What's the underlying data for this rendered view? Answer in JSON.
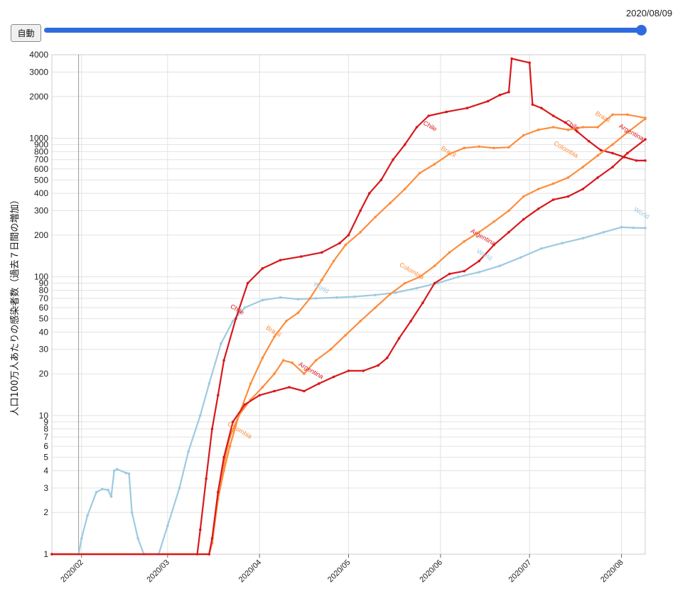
{
  "controls": {
    "auto_button": "自動",
    "current_date": "2020/08/09",
    "slider_progress": 1.0
  },
  "chart_data": {
    "type": "line",
    "title": "",
    "xlabel": "",
    "ylabel": "人口100万人あたりの感染者数（過去７日間の増加）",
    "y_scale": "log",
    "ylim": [
      1,
      4000
    ],
    "y_ticks": [
      1,
      2,
      3,
      4,
      5,
      6,
      7,
      8,
      9,
      10,
      20,
      30,
      40,
      50,
      60,
      70,
      80,
      90,
      100,
      200,
      300,
      400,
      500,
      600,
      700,
      800,
      900,
      1000,
      2000,
      3000,
      4000
    ],
    "x_range": [
      "2020-01-22",
      "2020-08-09"
    ],
    "x_ticks": [
      "2020/02",
      "2020/03",
      "2020/04",
      "2020/05",
      "2020/06",
      "2020/07",
      "2020/08"
    ],
    "x_tick_dates": [
      "2020-02-01",
      "2020-03-01",
      "2020-04-01",
      "2020-05-01",
      "2020-06-01",
      "2020-07-01",
      "2020-08-01"
    ],
    "grid": true,
    "series": [
      {
        "name": "World",
        "color": "#9ecae1",
        "points": [
          [
            "2020-01-22",
            1
          ],
          [
            "2020-01-31",
            1
          ],
          [
            "2020-02-01",
            1.3
          ],
          [
            "2020-02-03",
            1.9
          ],
          [
            "2020-02-06",
            2.8
          ],
          [
            "2020-02-08",
            2.95
          ],
          [
            "2020-02-10",
            2.9
          ],
          [
            "2020-02-11",
            2.6
          ],
          [
            "2020-02-12",
            4.0
          ],
          [
            "2020-02-13",
            4.1
          ],
          [
            "2020-02-16",
            3.85
          ],
          [
            "2020-02-17",
            3.8
          ],
          [
            "2020-02-18",
            2.0
          ],
          [
            "2020-02-20",
            1.3
          ],
          [
            "2020-02-22",
            1.0
          ],
          [
            "2020-02-27",
            1.0
          ],
          [
            "2020-03-01",
            1.6
          ],
          [
            "2020-03-05",
            3.0
          ],
          [
            "2020-03-08",
            5.5
          ],
          [
            "2020-03-12",
            10
          ],
          [
            "2020-03-15",
            17
          ],
          [
            "2020-03-19",
            33
          ],
          [
            "2020-03-23",
            48
          ],
          [
            "2020-03-27",
            60
          ],
          [
            "2020-04-02",
            68
          ],
          [
            "2020-04-08",
            71
          ],
          [
            "2020-04-14",
            69
          ],
          [
            "2020-04-20",
            70
          ],
          [
            "2020-04-27",
            71
          ],
          [
            "2020-05-03",
            72
          ],
          [
            "2020-05-10",
            74
          ],
          [
            "2020-05-17",
            77
          ],
          [
            "2020-05-24",
            83
          ],
          [
            "2020-05-31",
            90
          ],
          [
            "2020-06-07",
            100
          ],
          [
            "2020-06-14",
            108
          ],
          [
            "2020-06-21",
            120
          ],
          [
            "2020-06-28",
            138
          ],
          [
            "2020-07-05",
            160
          ],
          [
            "2020-07-12",
            175
          ],
          [
            "2020-07-19",
            190
          ],
          [
            "2020-07-26",
            210
          ],
          [
            "2020-08-01",
            228
          ],
          [
            "2020-08-05",
            226
          ],
          [
            "2020-08-09",
            225
          ]
        ]
      },
      {
        "name": "Chile",
        "color": "#d7191c",
        "points": [
          [
            "2020-01-22",
            1
          ],
          [
            "2020-03-11",
            1
          ],
          [
            "2020-03-12",
            1.5
          ],
          [
            "2020-03-14",
            3.5
          ],
          [
            "2020-03-16",
            8
          ],
          [
            "2020-03-18",
            14
          ],
          [
            "2020-03-20",
            25
          ],
          [
            "2020-03-24",
            50
          ],
          [
            "2020-03-28",
            90
          ],
          [
            "2020-04-02",
            115
          ],
          [
            "2020-04-08",
            132
          ],
          [
            "2020-04-15",
            140
          ],
          [
            "2020-04-22",
            150
          ],
          [
            "2020-04-28",
            175
          ],
          [
            "2020-05-01",
            200
          ],
          [
            "2020-05-05",
            300
          ],
          [
            "2020-05-08",
            400
          ],
          [
            "2020-05-12",
            500
          ],
          [
            "2020-05-16",
            700
          ],
          [
            "2020-05-20",
            900
          ],
          [
            "2020-05-24",
            1200
          ],
          [
            "2020-05-28",
            1450
          ],
          [
            "2020-06-03",
            1550
          ],
          [
            "2020-06-10",
            1650
          ],
          [
            "2020-06-17",
            1850
          ],
          [
            "2020-06-21",
            2050
          ],
          [
            "2020-06-24",
            2150
          ],
          [
            "2020-06-25",
            3750
          ],
          [
            "2020-07-01",
            3500
          ],
          [
            "2020-07-02",
            1750
          ],
          [
            "2020-07-05",
            1650
          ],
          [
            "2020-07-09",
            1450
          ],
          [
            "2020-07-13",
            1300
          ],
          [
            "2020-07-17",
            1120
          ],
          [
            "2020-07-21",
            950
          ],
          [
            "2020-07-25",
            820
          ],
          [
            "2020-07-29",
            780
          ],
          [
            "2020-08-02",
            730
          ],
          [
            "2020-08-06",
            690
          ],
          [
            "2020-08-09",
            690
          ]
        ]
      },
      {
        "name": "Brazil",
        "color": "#fd8d3c",
        "points": [
          [
            "2020-01-22",
            1
          ],
          [
            "2020-03-15",
            1
          ],
          [
            "2020-03-16",
            1.2
          ],
          [
            "2020-03-18",
            2.5
          ],
          [
            "2020-03-20",
            4
          ],
          [
            "2020-03-22",
            6
          ],
          [
            "2020-03-25",
            10
          ],
          [
            "2020-03-29",
            17
          ],
          [
            "2020-04-02",
            26
          ],
          [
            "2020-04-06",
            37
          ],
          [
            "2020-04-10",
            48
          ],
          [
            "2020-04-14",
            55
          ],
          [
            "2020-04-18",
            70
          ],
          [
            "2020-04-22",
            95
          ],
          [
            "2020-04-26",
            130
          ],
          [
            "2020-04-30",
            170
          ],
          [
            "2020-05-05",
            210
          ],
          [
            "2020-05-10",
            270
          ],
          [
            "2020-05-15",
            340
          ],
          [
            "2020-05-20",
            430
          ],
          [
            "2020-05-25",
            560
          ],
          [
            "2020-05-30",
            650
          ],
          [
            "2020-06-04",
            770
          ],
          [
            "2020-06-09",
            850
          ],
          [
            "2020-06-14",
            870
          ],
          [
            "2020-06-19",
            850
          ],
          [
            "2020-06-24",
            860
          ],
          [
            "2020-06-29",
            1050
          ],
          [
            "2020-07-04",
            1150
          ],
          [
            "2020-07-09",
            1200
          ],
          [
            "2020-07-14",
            1150
          ],
          [
            "2020-07-19",
            1200
          ],
          [
            "2020-07-24",
            1200
          ],
          [
            "2020-07-29",
            1480
          ],
          [
            "2020-08-03",
            1480
          ],
          [
            "2020-08-09",
            1400
          ]
        ]
      },
      {
        "name": "Colombia",
        "color": "#fd8d3c",
        "points": [
          [
            "2020-01-22",
            1
          ],
          [
            "2020-03-15",
            1
          ],
          [
            "2020-03-16",
            1.2
          ],
          [
            "2020-03-18",
            2.5
          ],
          [
            "2020-03-20",
            4.5
          ],
          [
            "2020-03-22",
            7
          ],
          [
            "2020-03-25",
            10
          ],
          [
            "2020-03-29",
            13
          ],
          [
            "2020-04-02",
            16
          ],
          [
            "2020-04-06",
            20
          ],
          [
            "2020-04-09",
            25
          ],
          [
            "2020-04-12",
            24
          ],
          [
            "2020-04-16",
            20
          ],
          [
            "2020-04-20",
            25
          ],
          [
            "2020-04-25",
            30
          ],
          [
            "2020-04-30",
            38
          ],
          [
            "2020-05-05",
            48
          ],
          [
            "2020-05-10",
            60
          ],
          [
            "2020-05-15",
            75
          ],
          [
            "2020-05-20",
            90
          ],
          [
            "2020-05-25",
            100
          ],
          [
            "2020-05-30",
            120
          ],
          [
            "2020-06-04",
            150
          ],
          [
            "2020-06-09",
            180
          ],
          [
            "2020-06-14",
            210
          ],
          [
            "2020-06-19",
            250
          ],
          [
            "2020-06-24",
            300
          ],
          [
            "2020-06-29",
            380
          ],
          [
            "2020-07-04",
            430
          ],
          [
            "2020-07-09",
            470
          ],
          [
            "2020-07-14",
            520
          ],
          [
            "2020-07-19",
            620
          ],
          [
            "2020-07-24",
            750
          ],
          [
            "2020-07-29",
            900
          ],
          [
            "2020-08-03",
            1100
          ],
          [
            "2020-08-09",
            1380
          ]
        ]
      },
      {
        "name": "Argentina",
        "color": "#d7191c",
        "points": [
          [
            "2020-01-22",
            1
          ],
          [
            "2020-03-15",
            1
          ],
          [
            "2020-03-16",
            1.3
          ],
          [
            "2020-03-18",
            2.8
          ],
          [
            "2020-03-20",
            5
          ],
          [
            "2020-03-23",
            9
          ],
          [
            "2020-03-27",
            12
          ],
          [
            "2020-04-01",
            14
          ],
          [
            "2020-04-06",
            15
          ],
          [
            "2020-04-11",
            16
          ],
          [
            "2020-04-16",
            15
          ],
          [
            "2020-04-21",
            17
          ],
          [
            "2020-04-26",
            19
          ],
          [
            "2020-05-01",
            21
          ],
          [
            "2020-05-06",
            21
          ],
          [
            "2020-05-11",
            23
          ],
          [
            "2020-05-14",
            26
          ],
          [
            "2020-05-18",
            36
          ],
          [
            "2020-05-22",
            48
          ],
          [
            "2020-05-26",
            65
          ],
          [
            "2020-05-30",
            90
          ],
          [
            "2020-06-04",
            105
          ],
          [
            "2020-06-09",
            110
          ],
          [
            "2020-06-14",
            130
          ],
          [
            "2020-06-19",
            170
          ],
          [
            "2020-06-24",
            210
          ],
          [
            "2020-06-29",
            260
          ],
          [
            "2020-07-04",
            310
          ],
          [
            "2020-07-09",
            360
          ],
          [
            "2020-07-14",
            380
          ],
          [
            "2020-07-19",
            430
          ],
          [
            "2020-07-24",
            520
          ],
          [
            "2020-07-29",
            620
          ],
          [
            "2020-08-03",
            780
          ],
          [
            "2020-08-09",
            980
          ]
        ]
      }
    ],
    "line_labels": [
      {
        "text": "Chile",
        "color": "#d7191c",
        "at": [
          "2020-03-22",
          60
        ],
        "angle": 30
      },
      {
        "text": "Chile",
        "color": "#d7191c",
        "at": [
          "2020-05-26",
          1260
        ],
        "angle": 30
      },
      {
        "text": "Chile",
        "color": "#d7191c",
        "at": [
          "2020-07-13",
          1280
        ],
        "angle": 30
      },
      {
        "text": "Brazil",
        "color": "#fd8d3c",
        "at": [
          "2020-04-03",
          42
        ],
        "angle": 30
      },
      {
        "text": "Brazil",
        "color": "#fd8d3c",
        "at": [
          "2020-06-01",
          830
        ],
        "angle": 30
      },
      {
        "text": "Brazil",
        "color": "#fd8d3c",
        "at": [
          "2020-07-23",
          1480
        ],
        "angle": 30
      },
      {
        "text": "Colombia",
        "color": "#fd8d3c",
        "at": [
          "2020-03-21",
          8.5
        ],
        "angle": 30
      },
      {
        "text": "Colombia",
        "color": "#fd8d3c",
        "at": [
          "2020-05-18",
          120
        ],
        "angle": 30
      },
      {
        "text": "Colombia",
        "color": "#fd8d3c",
        "at": [
          "2020-07-09",
          900
        ],
        "angle": 30
      },
      {
        "text": "Argentina",
        "color": "#d7191c",
        "at": [
          "2020-04-14",
          23
        ],
        "angle": 30
      },
      {
        "text": "Argentina",
        "color": "#d7191c",
        "at": [
          "2020-06-11",
          210
        ],
        "angle": 30
      },
      {
        "text": "Argentina",
        "color": "#d7191c",
        "at": [
          "2020-07-31",
          1200
        ],
        "angle": 30
      },
      {
        "text": "World",
        "color": "#9ecae1",
        "at": [
          "2020-04-19",
          87
        ],
        "angle": 30
      },
      {
        "text": "World",
        "color": "#9ecae1",
        "at": [
          "2020-06-13",
          150
        ],
        "angle": 30
      },
      {
        "text": "World",
        "color": "#9ecae1",
        "at": [
          "2020-08-05",
          300
        ],
        "angle": 30
      }
    ]
  }
}
